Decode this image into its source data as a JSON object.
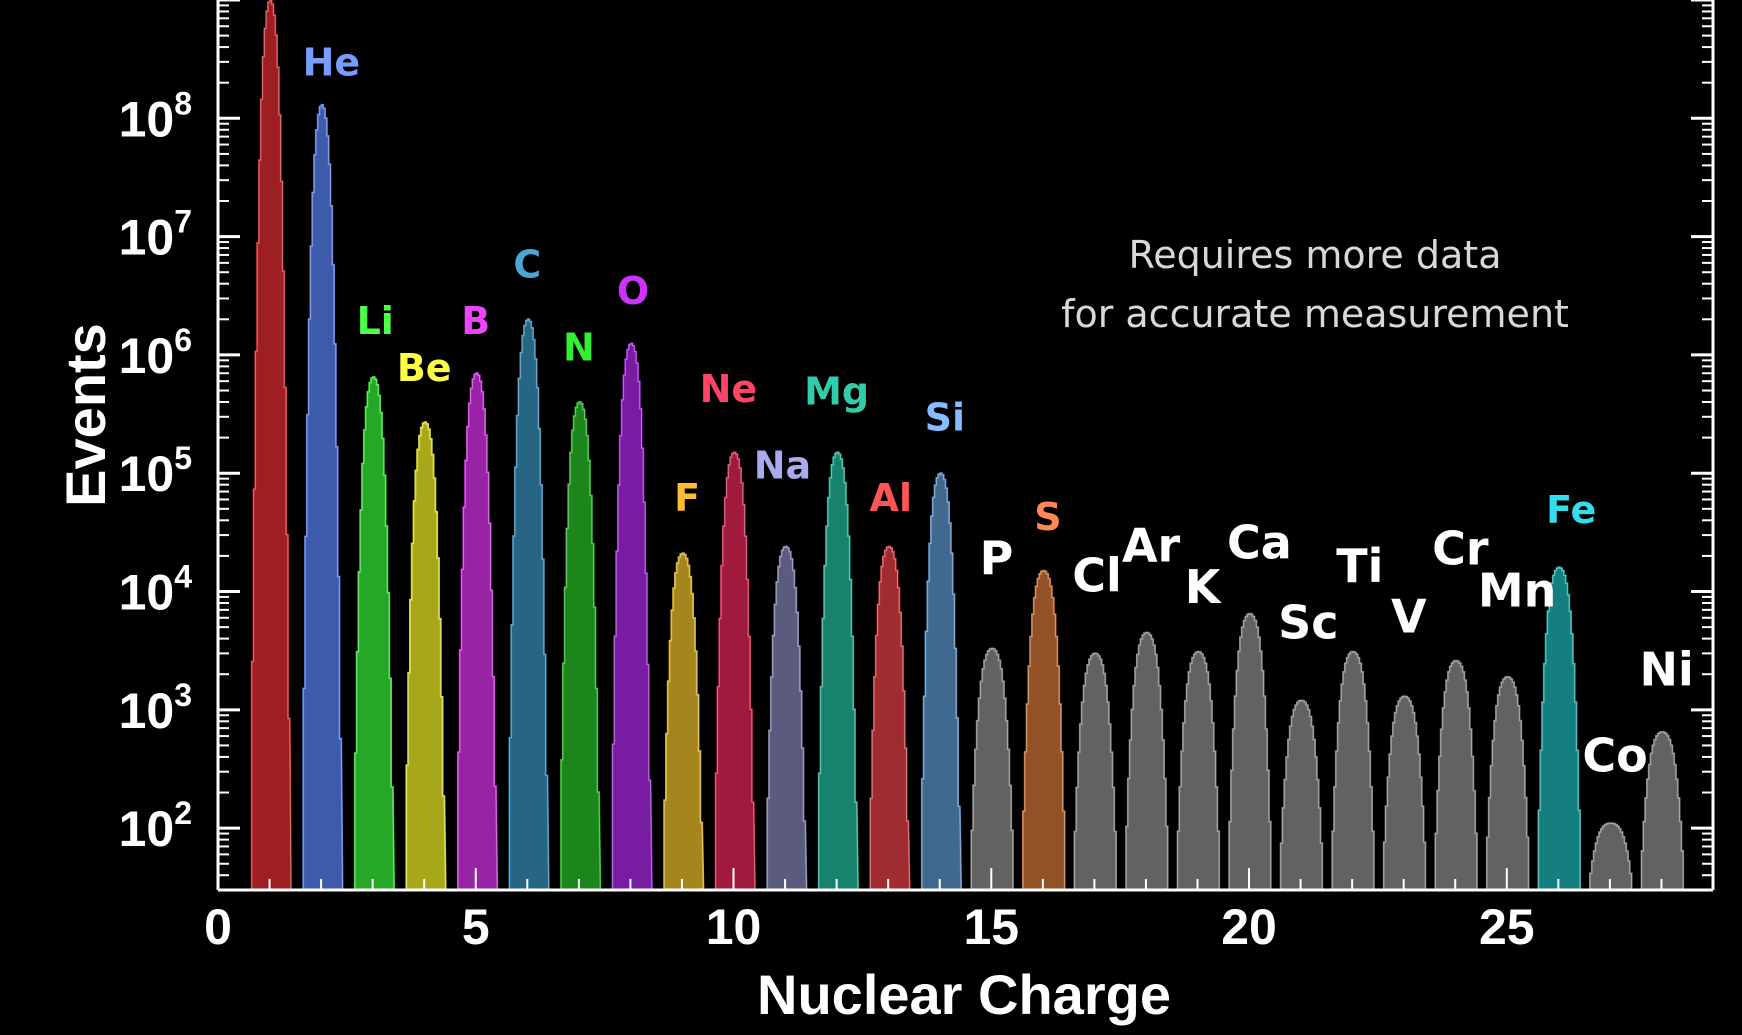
{
  "chart_data": {
    "type": "area",
    "title": "",
    "xlabel": "Nuclear Charge",
    "ylabel": "Events",
    "x_log": false,
    "y_log": true,
    "xlim": [
      0,
      29
    ],
    "ylim": [
      30,
      1000000000
    ],
    "x_ticks": [
      0,
      5,
      10,
      15,
      20,
      25
    ],
    "y_ticks": [
      {
        "value": 100,
        "base": "10",
        "exp": "2"
      },
      {
        "value": 1000,
        "base": "10",
        "exp": "3"
      },
      {
        "value": 10000,
        "base": "10",
        "exp": "4"
      },
      {
        "value": 100000,
        "base": "10",
        "exp": "5"
      },
      {
        "value": 1000000,
        "base": "10",
        "exp": "6"
      },
      {
        "value": 10000000,
        "base": "10",
        "exp": "7"
      },
      {
        "value": 100000000,
        "base": "10",
        "exp": "8"
      }
    ],
    "grid": false,
    "annotation": [
      "Requires more data",
      "for accurate measurement"
    ],
    "series": [
      {
        "z": 1,
        "label": "",
        "peak": 1000000000,
        "color": "#c0262a",
        "text_color": "#ff3b3b",
        "label_at": null
      },
      {
        "z": 2,
        "label": "He",
        "peak": 130000000,
        "color": "#4a6fd0",
        "text_color": "#7b9cff",
        "label_at": [
          2.2,
          230000000
        ]
      },
      {
        "z": 3,
        "label": "Li",
        "peak": 650000,
        "color": "#2fcc2f",
        "text_color": "#4dff4d",
        "label_at": [
          3.05,
          1500000
        ]
      },
      {
        "z": 4,
        "label": "Be",
        "peak": 270000,
        "color": "#cccc22",
        "text_color": "#ffff44",
        "label_at": [
          4.0,
          600000
        ]
      },
      {
        "z": 5,
        "label": "B",
        "peak": 700000,
        "color": "#b92bc9",
        "text_color": "#ee44ff",
        "label_at": [
          5.0,
          1500000
        ]
      },
      {
        "z": 6,
        "label": "C",
        "peak": 2000000,
        "color": "#2e7ba0",
        "text_color": "#4aa6d6",
        "label_at": [
          6.0,
          4500000
        ]
      },
      {
        "z": 7,
        "label": "N",
        "peak": 400000,
        "color": "#22a322",
        "text_color": "#33ee33",
        "label_at": [
          7.0,
          900000
        ]
      },
      {
        "z": 8,
        "label": "O",
        "peak": 1250000,
        "color": "#9222c4",
        "text_color": "#cc33ff",
        "label_at": [
          8.05,
          2700000
        ]
      },
      {
        "z": 9,
        "label": "F",
        "peak": 21000,
        "color": "#c9a223",
        "text_color": "#ffbb33",
        "label_at": [
          9.1,
          48000
        ]
      },
      {
        "z": 10,
        "label": "Ne",
        "peak": 150000,
        "color": "#c2204a",
        "text_color": "#ff4466",
        "label_at": [
          9.9,
          400000
        ]
      },
      {
        "z": 11,
        "label": "Na",
        "peak": 24000,
        "color": "#6f6f9a",
        "text_color": "#aaaaee",
        "label_at": [
          10.95,
          90000
        ]
      },
      {
        "z": 12,
        "label": "Mg",
        "peak": 150000,
        "color": "#1f9f86",
        "text_color": "#33ccaa",
        "label_at": [
          12.0,
          380000
        ]
      },
      {
        "z": 13,
        "label": "Al",
        "peak": 24000,
        "color": "#c2363a",
        "text_color": "#ff5555",
        "label_at": [
          13.05,
          48000
        ]
      },
      {
        "z": 14,
        "label": "Si",
        "peak": 100000,
        "color": "#4f80b0",
        "text_color": "#88bbff",
        "label_at": [
          14.1,
          230000
        ]
      },
      {
        "z": 15,
        "label": "P",
        "peak": 3300,
        "color": "#777777",
        "text_color": "#ffffff",
        "label_at": [
          15.1,
          14000
        ]
      },
      {
        "z": 16,
        "label": "S",
        "peak": 15000,
        "color": "#b3632f",
        "text_color": "#ff8855",
        "label_at": [
          16.1,
          33000
        ]
      },
      {
        "z": 17,
        "label": "Cl",
        "peak": 3000,
        "color": "#777777",
        "text_color": "#ffffff",
        "label_at": [
          17.05,
          10000
        ]
      },
      {
        "z": 18,
        "label": "Ar",
        "peak": 4500,
        "color": "#777777",
        "text_color": "#ffffff",
        "label_at": [
          18.1,
          18000
        ]
      },
      {
        "z": 19,
        "label": "K",
        "peak": 3100,
        "color": "#777777",
        "text_color": "#ffffff",
        "label_at": [
          19.1,
          8000
        ]
      },
      {
        "z": 20,
        "label": "Ca",
        "peak": 6500,
        "color": "#777777",
        "text_color": "#ffffff",
        "label_at": [
          20.2,
          19000
        ]
      },
      {
        "z": 21,
        "label": "Sc",
        "peak": 1200,
        "color": "#777777",
        "text_color": "#ffffff",
        "label_at": [
          21.15,
          4000
        ]
      },
      {
        "z": 22,
        "label": "Ti",
        "peak": 3100,
        "color": "#777777",
        "text_color": "#ffffff",
        "label_at": [
          22.15,
          12000
        ]
      },
      {
        "z": 23,
        "label": "V",
        "peak": 1300,
        "color": "#777777",
        "text_color": "#ffffff",
        "label_at": [
          23.1,
          4500
        ]
      },
      {
        "z": 24,
        "label": "Cr",
        "peak": 2600,
        "color": "#777777",
        "text_color": "#ffffff",
        "label_at": [
          24.1,
          17000
        ]
      },
      {
        "z": 25,
        "label": "Mn",
        "peak": 1900,
        "color": "#777777",
        "text_color": "#ffffff",
        "label_at": [
          25.2,
          7500
        ]
      },
      {
        "z": 26,
        "label": "Fe",
        "peak": 16000,
        "color": "#1a9b9b",
        "text_color": "#33ddee",
        "label_at": [
          26.25,
          38000
        ]
      },
      {
        "z": 27,
        "label": "Co",
        "peak": 110,
        "color": "#777777",
        "text_color": "#ffffff",
        "label_at": [
          27.1,
          300
        ]
      },
      {
        "z": 28,
        "label": "Ni",
        "peak": 650,
        "color": "#777777",
        "text_color": "#ffffff",
        "label_at": [
          28.1,
          1600
        ]
      }
    ]
  }
}
